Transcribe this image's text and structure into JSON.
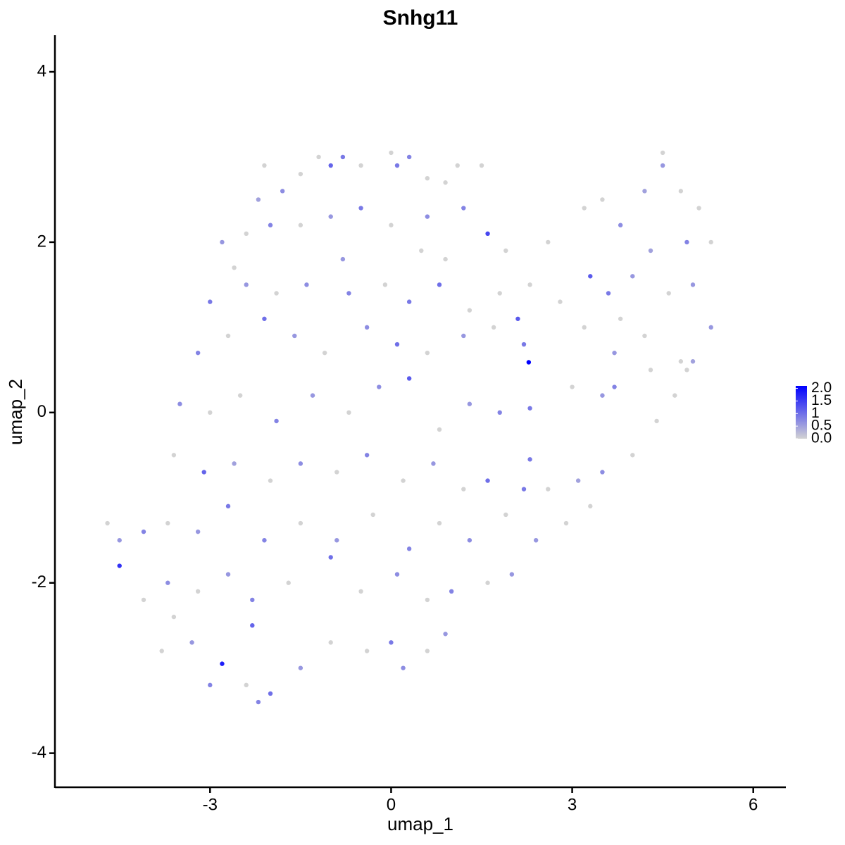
{
  "chart_data": {
    "type": "scatter",
    "title": "Snhg11",
    "xlabel": "umap_1",
    "ylabel": "umap_2",
    "xlim": [
      -5.57,
      6.54
    ],
    "ylim": [
      -4.4,
      4.43
    ],
    "xticks": [
      -3,
      0,
      3,
      6
    ],
    "yticks": [
      -4,
      -2,
      0,
      2,
      4
    ],
    "grid": false,
    "colors": [
      "#d3d3d3",
      "#0000ff"
    ],
    "colorlim": [
      0,
      2.1
    ],
    "colorticks": [
      {
        "value": 0,
        "label": "0.0"
      },
      0.5,
      1,
      1.5,
      {
        "value": 2,
        "label": "2.0"
      }
    ],
    "x": [
      -1.5,
      -1.2,
      -0.8,
      -0.5,
      0,
      0.3,
      0.6,
      0.9,
      -1.8,
      -2.1,
      -2.2,
      -1.0,
      0.1,
      1.1,
      1.5,
      -2.8,
      -2.4,
      -2.0,
      -1.5,
      -1.0,
      -0.5,
      0,
      0.6,
      1.2,
      1.6,
      -2.6,
      -0.8,
      0.5,
      0.9,
      1.9,
      2.6,
      3.2,
      3.5,
      3.8,
      4.2,
      4.5,
      4.5,
      4.8,
      5.1,
      5.3,
      4.9,
      4.3,
      -3.0,
      -2.4,
      -1.9,
      -1.4,
      -0.7,
      -0.1,
      0.3,
      0.8,
      1.3,
      1.8,
      2.3,
      2.8,
      3.3,
      3.6,
      4.0,
      4.6,
      5.0,
      3.8,
      -3.2,
      -2.7,
      -2.1,
      -1.6,
      -1.1,
      -0.4,
      0.1,
      0.6,
      1.2,
      1.7,
      2.1,
      2.28,
      2.2,
      3.2,
      3.7,
      4.2,
      4.8,
      5.3,
      5.0,
      -3.5,
      -3.0,
      -2.5,
      -1.9,
      -1.3,
      -0.7,
      -0.2,
      0.3,
      0.8,
      1.3,
      1.8,
      2.3,
      3.0,
      3.5,
      3.7,
      4.3,
      4.7,
      4.9,
      -3.6,
      -3.1,
      -2.6,
      -2.0,
      -1.5,
      -0.9,
      -0.4,
      0.2,
      0.7,
      1.2,
      1.6,
      2.2,
      2.6,
      3.1,
      3.5,
      4.0,
      4.4,
      2.3,
      -4.7,
      -4.5,
      -4.1,
      -3.7,
      -3.2,
      -2.7,
      -2.1,
      -1.5,
      -0.9,
      -0.3,
      0.3,
      0.8,
      1.3,
      1.9,
      2.4,
      2.9,
      3.3,
      -4.5,
      -4.1,
      -3.7,
      -3.2,
      -2.7,
      -2.3,
      -1.7,
      -1.0,
      -0.5,
      0.1,
      0.6,
      1.0,
      1.6,
      2.0,
      -3.8,
      -3.3,
      -2.8,
      -2.4,
      -2.2,
      -2.0,
      -1.5,
      -1.0,
      -0.4,
      0,
      0.2,
      0.6,
      0.9,
      -3.0,
      -2.3,
      -3.6
    ],
    "y": [
      2.8,
      3.0,
      3.0,
      2.9,
      3.05,
      3.0,
      2.75,
      2.7,
      2.6,
      2.9,
      2.5,
      2.9,
      2.9,
      2.9,
      2.9,
      2.0,
      2.1,
      2.2,
      2.2,
      2.3,
      2.4,
      2.2,
      2.3,
      2.4,
      2.1,
      1.7,
      1.8,
      1.9,
      1.8,
      1.9,
      2.0,
      2.4,
      2.5,
      2.2,
      2.6,
      2.9,
      3.05,
      2.6,
      2.4,
      2.0,
      2.0,
      1.9,
      1.3,
      1.5,
      1.4,
      1.5,
      1.4,
      1.5,
      1.3,
      1.5,
      1.2,
      1.4,
      1.5,
      1.3,
      1.6,
      1.4,
      1.6,
      1.4,
      1.5,
      1.1,
      0.7,
      0.9,
      1.1,
      0.9,
      0.7,
      1.0,
      0.8,
      0.7,
      0.9,
      1.0,
      1.1,
      0.59,
      0.8,
      1.0,
      0.7,
      0.9,
      0.6,
      1.0,
      0.6,
      0.1,
      0,
      0.2,
      -0.1,
      0.2,
      0,
      0.3,
      0.4,
      -0.2,
      0.1,
      0,
      0.05,
      0.3,
      0.2,
      0.3,
      0.5,
      0.2,
      0.5,
      -0.5,
      -0.7,
      -0.6,
      -0.8,
      -0.6,
      -0.7,
      -0.5,
      -0.8,
      -0.6,
      -0.9,
      -0.8,
      -0.9,
      -0.9,
      -0.8,
      -0.7,
      -0.5,
      -0.1,
      -0.55,
      -1.3,
      -1.5,
      -1.4,
      -1.3,
      -1.4,
      -1.1,
      -1.5,
      -1.3,
      -1.5,
      -1.2,
      -1.6,
      -1.3,
      -1.5,
      -1.2,
      -1.5,
      -1.3,
      -1.1,
      -1.8,
      -2.2,
      -2.0,
      -2.1,
      -1.9,
      -2.2,
      -2.0,
      -1.7,
      -2.1,
      -1.9,
      -2.2,
      -2.1,
      -2.0,
      -1.9,
      -2.8,
      -2.7,
      -2.95,
      -3.2,
      -3.4,
      -3.3,
      -3.0,
      -2.7,
      -2.8,
      -2.7,
      -3.0,
      -2.8,
      -2.6,
      -3.2,
      -2.5,
      -2.4
    ],
    "values": [
      0,
      0,
      0.9,
      0,
      0,
      0.8,
      0,
      0,
      0.7,
      0,
      0.5,
      1.1,
      0.9,
      0,
      0,
      0.6,
      0,
      0.8,
      0,
      0.6,
      0.9,
      0,
      0.7,
      0.8,
      1.4,
      0,
      0.6,
      0,
      0,
      0,
      0,
      0,
      0,
      0.7,
      0.5,
      0.6,
      0,
      0,
      0,
      0,
      0.8,
      0.5,
      0.9,
      0.6,
      0,
      0.7,
      0.8,
      0,
      0.9,
      1.0,
      0,
      0,
      0,
      0,
      1.2,
      0.9,
      0.6,
      0,
      0.6,
      0,
      0.8,
      0,
      1.0,
      0.6,
      0,
      0.7,
      1.0,
      0,
      0.6,
      0,
      1.2,
      2.1,
      0.9,
      0,
      0.6,
      0,
      0,
      0.6,
      0.5,
      0.7,
      0,
      0,
      0.8,
      0.6,
      0,
      0.7,
      1.2,
      0,
      0.6,
      0.8,
      0.9,
      0,
      0.6,
      0.8,
      0,
      0,
      0,
      0,
      1.1,
      0.5,
      0,
      0.7,
      0,
      0.8,
      0,
      0.6,
      0,
      1.0,
      0.9,
      0,
      0.5,
      0.7,
      0,
      0,
      0.9,
      0,
      0.6,
      0.8,
      0,
      0.6,
      0.9,
      0.8,
      0,
      0.6,
      0,
      0.8,
      0,
      0.7,
      0,
      0.6,
      0,
      0,
      1.6,
      0,
      0.7,
      0,
      0.6,
      0.8,
      0,
      1.0,
      0,
      0.7,
      0,
      0.8,
      0,
      0.6,
      0,
      0.6,
      1.8,
      0,
      0.8,
      1.0,
      0.6,
      0,
      0,
      0.9,
      0.7,
      0,
      0.6,
      0.8,
      1.1,
      0
    ]
  }
}
